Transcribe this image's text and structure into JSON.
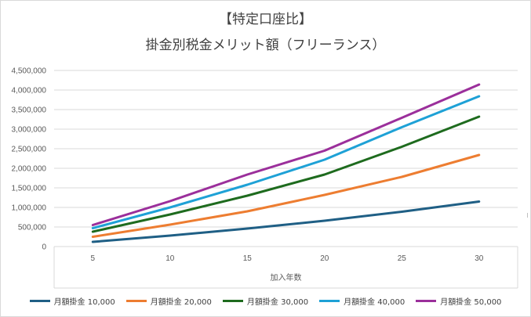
{
  "chart_data": {
    "type": "line",
    "title": "【特定口座比】",
    "subtitle": "掛金別税金メリット額（フリーランス）",
    "xlabel": "加入年数",
    "ylabel": "",
    "categories": [
      "5",
      "10",
      "15",
      "20",
      "25",
      "30"
    ],
    "ylim": [
      0,
      4500000
    ],
    "yticks": [
      "0",
      "500,000",
      "1,000,000",
      "1,500,000",
      "2,000,000",
      "2,500,000",
      "3,000,000",
      "3,500,000",
      "4,000,000",
      "4,500,000"
    ],
    "grid": true,
    "legend_position": "bottom",
    "series": [
      {
        "name": "月額掛金 10,000",
        "color": "#1f5f85",
        "values": [
          120000,
          280000,
          460000,
          660000,
          890000,
          1150000
        ]
      },
      {
        "name": "月額掛金 20,000",
        "color": "#ed7d31",
        "values": [
          250000,
          560000,
          900000,
          1320000,
          1780000,
          2340000
        ]
      },
      {
        "name": "月額掛金 30,000",
        "color": "#1e6b1e",
        "values": [
          380000,
          820000,
          1300000,
          1840000,
          2550000,
          3320000
        ]
      },
      {
        "name": "月額掛金 40,000",
        "color": "#1ea1d6",
        "values": [
          470000,
          1000000,
          1580000,
          2220000,
          3050000,
          3840000
        ]
      },
      {
        "name": "月額掛金 50,000",
        "color": "#9b2f9b",
        "values": [
          550000,
          1160000,
          1840000,
          2450000,
          3290000,
          4140000
        ]
      }
    ]
  }
}
